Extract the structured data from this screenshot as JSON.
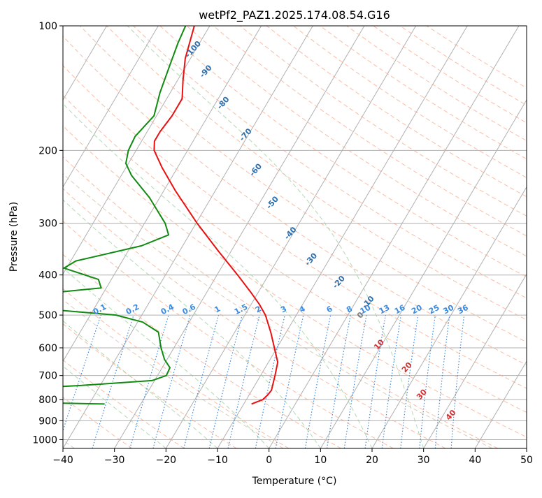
{
  "chart_data": {
    "type": "skew-t",
    "title": "wetPf2_PAZ1.2025.174.08.54.G16",
    "xlabel": "Temperature (°C)",
    "ylabel": "Pressure (hPa)",
    "xlim": [
      -40,
      50
    ],
    "ylim": [
      1050,
      100
    ],
    "y_scale": "log",
    "x_ticks": [
      -40,
      -30,
      -20,
      -10,
      0,
      10,
      20,
      30,
      40,
      50
    ],
    "x_tick_labels": [
      "−40",
      "−30",
      "−20",
      "−10",
      "0",
      "10",
      "20",
      "30",
      "40",
      "50"
    ],
    "y_ticks": [
      1000,
      900,
      800,
      700,
      600,
      500,
      400,
      300,
      200,
      100
    ],
    "y_tick_labels": [
      "1000",
      "900",
      "800",
      "700",
      "600",
      "500",
      "400",
      "300",
      "200",
      "100"
    ],
    "grid": true,
    "colors": {
      "temperature": "#e81010",
      "dewpoint": "#118a11",
      "isotherm": "#b0b0b0",
      "dry_adiabat": "#f9a585",
      "moist_adiabat": "#98cc98",
      "mixing_ratio": "#3b8ae0",
      "wetbulb_label": "#2b6fb0",
      "thetae_label": "#d03030",
      "zero_label": "#7a7a7a",
      "background_arc": "#d6bfa6"
    },
    "series": [
      {
        "kind": "temperature",
        "points": [
          {
            "p": 820,
            "t": -8.5
          },
          {
            "p": 800,
            "t": -6.8
          },
          {
            "p": 780,
            "t": -6.4
          },
          {
            "p": 760,
            "t": -6.2
          },
          {
            "p": 700,
            "t": -7.2
          },
          {
            "p": 650,
            "t": -8.2
          },
          {
            "p": 600,
            "t": -10.5
          },
          {
            "p": 550,
            "t": -13.0
          },
          {
            "p": 500,
            "t": -16.0
          },
          {
            "p": 470,
            "t": -18.5
          },
          {
            "p": 440,
            "t": -21.5
          },
          {
            "p": 400,
            "t": -26.0
          },
          {
            "p": 350,
            "t": -32.5
          },
          {
            "p": 300,
            "t": -39.8
          },
          {
            "p": 250,
            "t": -47.8
          },
          {
            "p": 220,
            "t": -53.0
          },
          {
            "p": 200,
            "t": -56.5
          },
          {
            "p": 190,
            "t": -57.5
          },
          {
            "p": 180,
            "t": -57.5
          },
          {
            "p": 165,
            "t": -57.0
          },
          {
            "p": 150,
            "t": -57.0
          },
          {
            "p": 135,
            "t": -59.0
          },
          {
            "p": 120,
            "t": -61.0
          },
          {
            "p": 100,
            "t": -63.0
          }
        ]
      },
      {
        "kind": "dewpoint",
        "points": [
          {
            "p": 820,
            "t": -37.0
          },
          {
            "p": 815,
            "t": -48.0
          },
          {
            "p": 750,
            "t": -52.5
          },
          {
            "p": 740,
            "t": -44.0
          },
          {
            "p": 720,
            "t": -30.5
          },
          {
            "p": 700,
            "t": -28.3
          },
          {
            "p": 670,
            "t": -28.5
          },
          {
            "p": 640,
            "t": -30.5
          },
          {
            "p": 600,
            "t": -32.5
          },
          {
            "p": 550,
            "t": -34.8
          },
          {
            "p": 520,
            "t": -39.0
          },
          {
            "p": 500,
            "t": -45.0
          },
          {
            "p": 485,
            "t": -58.0
          },
          {
            "p": 455,
            "t": -70.0
          },
          {
            "p": 430,
            "t": -51.0
          },
          {
            "p": 410,
            "t": -52.5
          },
          {
            "p": 385,
            "t": -60.5
          },
          {
            "p": 370,
            "t": -59.0
          },
          {
            "p": 340,
            "t": -48.0
          },
          {
            "p": 320,
            "t": -44.0
          },
          {
            "p": 300,
            "t": -46.0
          },
          {
            "p": 260,
            "t": -52.0
          },
          {
            "p": 230,
            "t": -58.0
          },
          {
            "p": 215,
            "t": -60.5
          },
          {
            "p": 200,
            "t": -61.5
          },
          {
            "p": 185,
            "t": -61.8
          },
          {
            "p": 165,
            "t": -60.5
          },
          {
            "p": 145,
            "t": -62.0
          },
          {
            "p": 125,
            "t": -63.2
          },
          {
            "p": 110,
            "t": -64.2
          },
          {
            "p": 100,
            "t": -64.7
          }
        ]
      }
    ],
    "isotherm_temps": [
      -140,
      -130,
      -120,
      -110,
      -100,
      -90,
      -80,
      -70,
      -60,
      -50,
      -40,
      -30,
      -20,
      -10,
      0,
      10,
      20,
      30,
      40,
      50
    ],
    "dry_adiabat_thetas_c": [
      -30,
      -20,
      -10,
      0,
      10,
      20,
      30,
      40,
      50,
      60,
      70,
      80,
      90,
      100,
      110,
      120,
      130,
      140,
      150,
      160,
      170,
      180,
      190,
      200,
      210,
      220
    ],
    "moist_adiabat_start_temps_c": [
      -20,
      -10,
      0,
      10,
      20,
      30
    ],
    "mixing_ratios": [
      0.1,
      0.2,
      0.4,
      0.6,
      1,
      1.5,
      2,
      3,
      4,
      6,
      8,
      10,
      13,
      16,
      20,
      25,
      30,
      36
    ],
    "mixing_ratio_labels": [
      "0.1",
      "0.2",
      "0.4",
      "0.6",
      "1",
      "1.5",
      "2",
      "3",
      "4",
      "6",
      "8",
      "10",
      "13",
      "16",
      "20",
      "25",
      "30",
      "36"
    ],
    "wetbulb_labels": [
      {
        "text": "-100",
        "p": 115,
        "t": -60
      },
      {
        "text": "-90",
        "p": 130,
        "t": -55
      },
      {
        "text": "-80",
        "p": 155,
        "t": -48
      },
      {
        "text": "-70",
        "p": 185,
        "t": -40
      },
      {
        "text": "-60",
        "p": 225,
        "t": -34
      },
      {
        "text": "-50",
        "p": 270,
        "t": -27
      },
      {
        "text": "-40",
        "p": 320,
        "t": -20
      },
      {
        "text": "-30",
        "p": 370,
        "t": -13
      },
      {
        "text": "-20",
        "p": 420,
        "t": -5
      },
      {
        "text": "-10",
        "p": 470,
        "t": 3
      }
    ],
    "thetae_labels": [
      {
        "text": "0",
        "p": 505,
        "t": 3
      },
      {
        "text": "10",
        "p": 595,
        "t": 10
      },
      {
        "text": "20",
        "p": 675,
        "t": 18
      },
      {
        "text": "30",
        "p": 785,
        "t": 24
      },
      {
        "text": "40",
        "p": 880,
        "t": 32
      }
    ]
  }
}
